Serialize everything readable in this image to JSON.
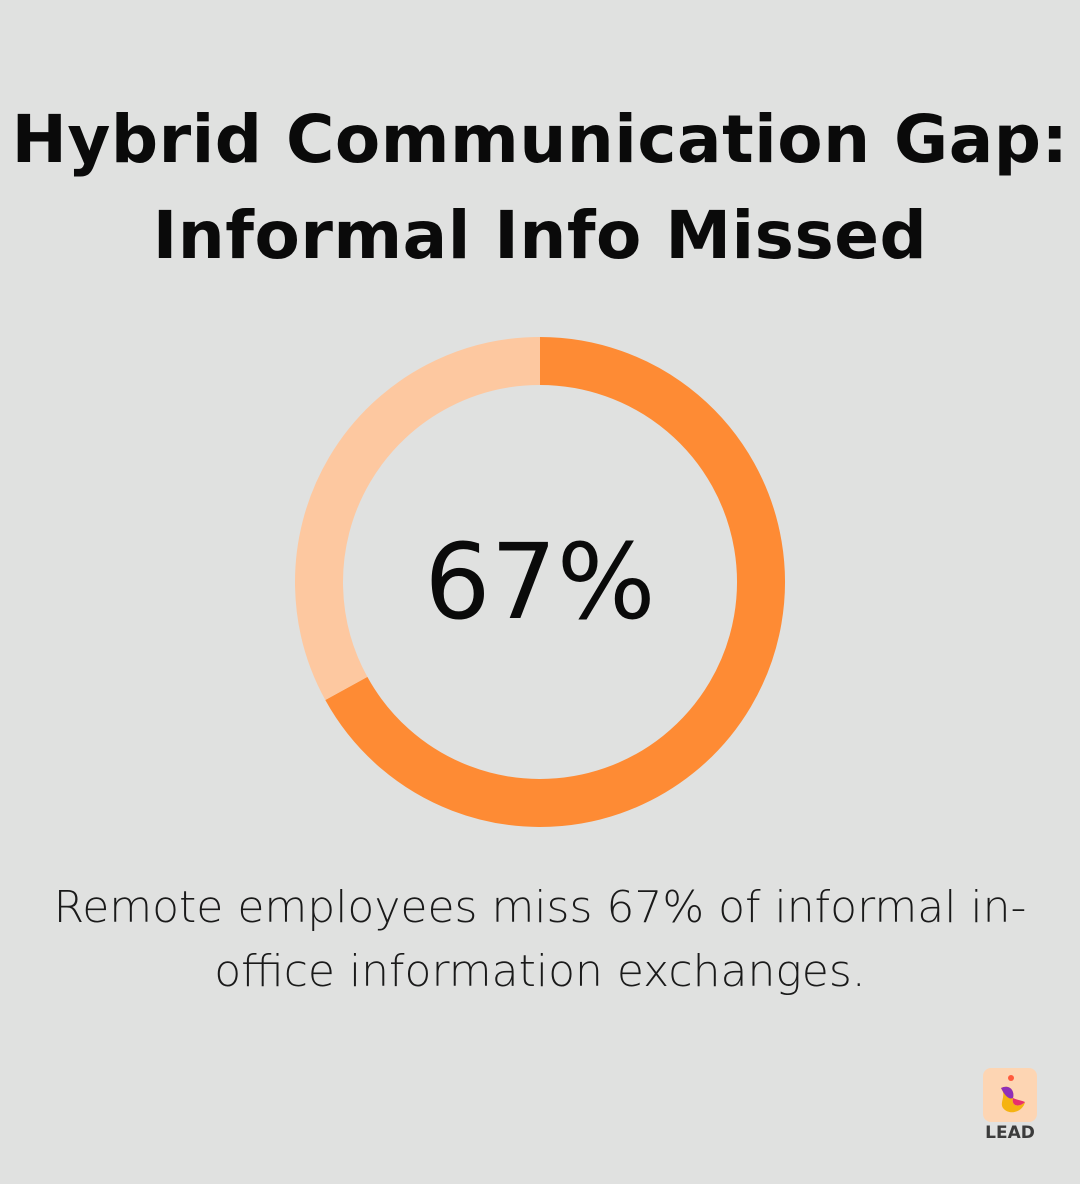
{
  "title": "Hybrid Communication Gap: Informal Info Missed",
  "caption": "Remote employees miss 67% of informal in-office information exchanges.",
  "logo": {
    "text": "LEAD"
  },
  "chart_data": {
    "type": "pie",
    "style": "donut",
    "center_label": "67%",
    "values": [
      67,
      33
    ],
    "colors": [
      "#fe8b34",
      "#fdc8a0"
    ]
  }
}
